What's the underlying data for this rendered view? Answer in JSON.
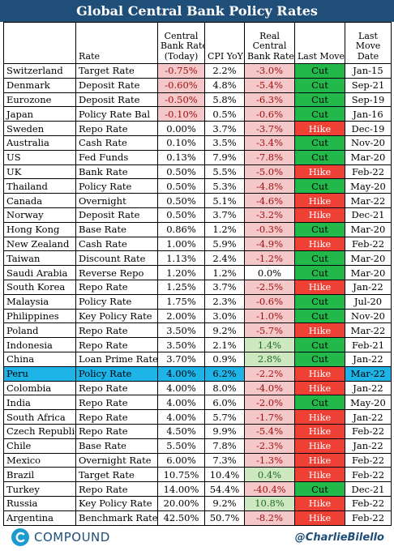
{
  "title": "Global Central Bank Policy Rates",
  "headers": {
    "country": "",
    "rate": "Rate",
    "cbr_l1": "Central",
    "cbr_l2": "Bank Rate",
    "cbr_l3": "(Today)",
    "cpi": "CPI YoY",
    "real_l1": "Real",
    "real_l2": "Central",
    "real_l3": "Bank Rate",
    "move": "Last Move",
    "date_l1": "Last",
    "date_l2": "Move",
    "date_l3": "Date"
  },
  "rows": [
    {
      "country": "Switzerland",
      "rate": "Target Rate",
      "cbr": "-0.75%",
      "cpi": "2.2%",
      "real": "-3.0%",
      "move": "Cut",
      "date": "Jan-15"
    },
    {
      "country": "Denmark",
      "rate": "Deposit Rate",
      "cbr": "-0.60%",
      "cpi": "4.8%",
      "real": "-5.4%",
      "move": "Cut",
      "date": "Sep-21"
    },
    {
      "country": "Eurozone",
      "rate": "Deposit Rate",
      "cbr": "-0.50%",
      "cpi": "5.8%",
      "real": "-6.3%",
      "move": "Cut",
      "date": "Sep-19"
    },
    {
      "country": "Japan",
      "rate": "Policy Rate Bal",
      "cbr": "-0.10%",
      "cpi": "0.5%",
      "real": "-0.6%",
      "move": "Cut",
      "date": "Jan-16"
    },
    {
      "country": "Sweden",
      "rate": "Repo Rate",
      "cbr": "0.00%",
      "cpi": "3.7%",
      "real": "-3.7%",
      "move": "Hike",
      "date": "Dec-19"
    },
    {
      "country": "Australia",
      "rate": "Cash Rate",
      "cbr": "0.10%",
      "cpi": "3.5%",
      "real": "-3.4%",
      "move": "Cut",
      "date": "Nov-20"
    },
    {
      "country": "US",
      "rate": "Fed Funds",
      "cbr": "0.13%",
      "cpi": "7.9%",
      "real": "-7.8%",
      "move": "Cut",
      "date": "Mar-20"
    },
    {
      "country": "UK",
      "rate": "Bank Rate",
      "cbr": "0.50%",
      "cpi": "5.5%",
      "real": "-5.0%",
      "move": "Hike",
      "date": "Feb-22"
    },
    {
      "country": "Thailand",
      "rate": "Policy Rate",
      "cbr": "0.50%",
      "cpi": "5.3%",
      "real": "-4.8%",
      "move": "Cut",
      "date": "May-20"
    },
    {
      "country": "Canada",
      "rate": "Overnight",
      "cbr": "0.50%",
      "cpi": "5.1%",
      "real": "-4.6%",
      "move": "Hike",
      "date": "Mar-22"
    },
    {
      "country": "Norway",
      "rate": "Deposit Rate",
      "cbr": "0.50%",
      "cpi": "3.7%",
      "real": "-3.2%",
      "move": "Hike",
      "date": "Dec-21"
    },
    {
      "country": "Hong Kong",
      "rate": "Base Rate",
      "cbr": "0.86%",
      "cpi": "1.2%",
      "real": "-0.3%",
      "move": "Cut",
      "date": "Mar-20"
    },
    {
      "country": "New Zealand",
      "rate": "Cash Rate",
      "cbr": "1.00%",
      "cpi": "5.9%",
      "real": "-4.9%",
      "move": "Hike",
      "date": "Feb-22"
    },
    {
      "country": "Taiwan",
      "rate": "Discount Rate",
      "cbr": "1.13%",
      "cpi": "2.4%",
      "real": "-1.2%",
      "move": "Cut",
      "date": "Mar-20"
    },
    {
      "country": "Saudi Arabia",
      "rate": "Reverse Repo",
      "cbr": "1.20%",
      "cpi": "1.2%",
      "real": "0.0%",
      "move": "Cut",
      "date": "Mar-20"
    },
    {
      "country": "South Korea",
      "rate": "Repo Rate",
      "cbr": "1.25%",
      "cpi": "3.7%",
      "real": "-2.5%",
      "move": "Hike",
      "date": "Jan-22"
    },
    {
      "country": "Malaysia",
      "rate": "Policy Rate",
      "cbr": "1.75%",
      "cpi": "2.3%",
      "real": "-0.6%",
      "move": "Cut",
      "date": "Jul-20"
    },
    {
      "country": "Philippines",
      "rate": "Key Policy Rate",
      "cbr": "2.00%",
      "cpi": "3.0%",
      "real": "-1.0%",
      "move": "Cut",
      "date": "Nov-20"
    },
    {
      "country": "Poland",
      "rate": "Repo Rate",
      "cbr": "3.50%",
      "cpi": "9.2%",
      "real": "-5.7%",
      "move": "Hike",
      "date": "Mar-22"
    },
    {
      "country": "Indonesia",
      "rate": "Repo Rate",
      "cbr": "3.50%",
      "cpi": "2.1%",
      "real": "1.4%",
      "move": "Cut",
      "date": "Feb-21"
    },
    {
      "country": "China",
      "rate": "Loan Prime Rate",
      "cbr": "3.70%",
      "cpi": "0.9%",
      "real": "2.8%",
      "move": "Cut",
      "date": "Jan-22"
    },
    {
      "country": "Peru",
      "rate": "Policy Rate",
      "cbr": "4.00%",
      "cpi": "6.2%",
      "real": "-2.2%",
      "move": "Hike",
      "date": "Mar-22",
      "highlight": true
    },
    {
      "country": "Colombia",
      "rate": "Repo Rate",
      "cbr": "4.00%",
      "cpi": "8.0%",
      "real": "-4.0%",
      "move": "Hike",
      "date": "Jan-22"
    },
    {
      "country": "India",
      "rate": "Repo Rate",
      "cbr": "4.00%",
      "cpi": "6.0%",
      "real": "-2.0%",
      "move": "Cut",
      "date": "May-20"
    },
    {
      "country": "South Africa",
      "rate": "Repo Rate",
      "cbr": "4.00%",
      "cpi": "5.7%",
      "real": "-1.7%",
      "move": "Hike",
      "date": "Jan-22"
    },
    {
      "country": "Czech Republic",
      "rate": "Repo Rate",
      "cbr": "4.50%",
      "cpi": "9.9%",
      "real": "-5.4%",
      "move": "Hike",
      "date": "Feb-22"
    },
    {
      "country": "Chile",
      "rate": "Base Rate",
      "cbr": "5.50%",
      "cpi": "7.8%",
      "real": "-2.3%",
      "move": "Hike",
      "date": "Jan-22"
    },
    {
      "country": "Mexico",
      "rate": "Overnight Rate",
      "cbr": "6.00%",
      "cpi": "7.3%",
      "real": "-1.3%",
      "move": "Hike",
      "date": "Feb-22"
    },
    {
      "country": "Brazil",
      "rate": "Target Rate",
      "cbr": "10.75%",
      "cpi": "10.4%",
      "real": "0.4%",
      "move": "Hike",
      "date": "Feb-22"
    },
    {
      "country": "Turkey",
      "rate": "Repo Rate",
      "cbr": "14.00%",
      "cpi": "54.4%",
      "real": "-40.4%",
      "move": "Cut",
      "date": "Dec-21"
    },
    {
      "country": "Russia",
      "rate": "Key Policy Rate",
      "cbr": "20.00%",
      "cpi": "9.2%",
      "real": "10.8%",
      "move": "Hike",
      "date": "Feb-22"
    },
    {
      "country": "Argentina",
      "rate": "Benchmark Rate",
      "cbr": "42.50%",
      "cpi": "50.7%",
      "real": "-8.2%",
      "move": "Hike",
      "date": "Feb-22"
    }
  ],
  "footer": {
    "brand": "COMPOUND",
    "handle": "@CharlieBilello",
    "logo_icon": "compound-c-icon"
  },
  "colors": {
    "title_bg": "#1f4e79",
    "cut": "#22b84a",
    "hike": "#ee4035",
    "negative_bg": "#f4c7c9",
    "positive_bg": "#cde8c1",
    "highlight": "#1eb4e8"
  }
}
